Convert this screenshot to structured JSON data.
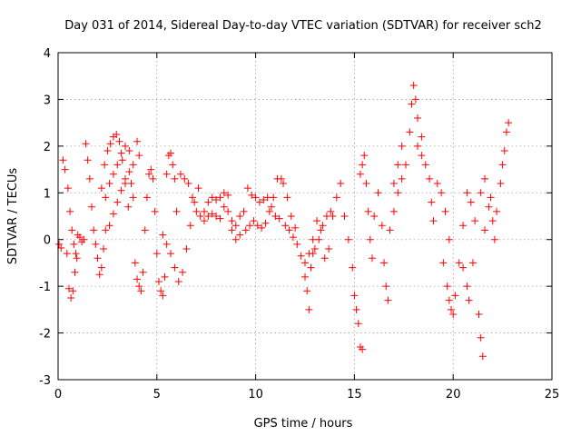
{
  "chart_data": {
    "type": "scatter",
    "title": "Day 031 of 2014, Sidereal Day-to-day VTEC variation (SDTVAR) for receiver sch2",
    "xlabel": "GPS time / hours",
    "ylabel": "SDTVAR / TECUs",
    "xlim": [
      0,
      25
    ],
    "ylim": [
      -3,
      4
    ],
    "xticks": [
      "0",
      "5",
      "10",
      "15",
      "20",
      "25"
    ],
    "yticks": [
      "-3",
      "-2",
      "-1",
      "0",
      "1",
      "2",
      "3",
      "4"
    ],
    "grid": true,
    "marker": "+",
    "color": "#ff0000",
    "series": [
      {
        "name": "sch2",
        "points": [
          [
            0.05,
            -0.1
          ],
          [
            0.15,
            -0.18
          ],
          [
            0.25,
            1.7
          ],
          [
            0.35,
            1.5
          ],
          [
            0.45,
            -0.3
          ],
          [
            0.55,
            -1.05
          ],
          [
            0.65,
            -1.25
          ],
          [
            0.75,
            -1.1
          ],
          [
            0.85,
            -0.7
          ],
          [
            0.95,
            -0.4
          ],
          [
            0.5,
            1.1
          ],
          [
            0.6,
            0.6
          ],
          [
            0.7,
            0.2
          ],
          [
            0.8,
            -0.1
          ],
          [
            0.9,
            -0.3
          ],
          [
            1.0,
            0.1
          ],
          [
            1.1,
            0.05
          ],
          [
            1.2,
            -0.05
          ],
          [
            1.3,
            0.0
          ],
          [
            1.4,
            2.05
          ],
          [
            1.5,
            1.7
          ],
          [
            1.6,
            1.3
          ],
          [
            1.7,
            0.7
          ],
          [
            1.8,
            0.2
          ],
          [
            1.9,
            -0.1
          ],
          [
            2.0,
            -0.4
          ],
          [
            2.1,
            -0.75
          ],
          [
            2.2,
            -0.6
          ],
          [
            2.3,
            -0.2
          ],
          [
            2.4,
            0.2
          ],
          [
            2.2,
            1.1
          ],
          [
            2.35,
            1.6
          ],
          [
            2.5,
            1.9
          ],
          [
            2.65,
            2.05
          ],
          [
            2.8,
            2.2
          ],
          [
            2.95,
            2.25
          ],
          [
            3.1,
            2.1
          ],
          [
            3.25,
            1.7
          ],
          [
            3.4,
            1.2
          ],
          [
            3.55,
            0.7
          ],
          [
            2.4,
            0.9
          ],
          [
            2.6,
            1.2
          ],
          [
            2.8,
            1.4
          ],
          [
            3.0,
            1.6
          ],
          [
            3.2,
            1.85
          ],
          [
            3.4,
            2.0
          ],
          [
            3.6,
            1.9
          ],
          [
            3.8,
            1.6
          ],
          [
            4.0,
            2.1
          ],
          [
            4.1,
            1.8
          ],
          [
            2.6,
            0.3
          ],
          [
            2.8,
            0.55
          ],
          [
            3.0,
            0.8
          ],
          [
            3.2,
            1.05
          ],
          [
            3.4,
            1.3
          ],
          [
            3.6,
            1.45
          ],
          [
            3.7,
            1.2
          ],
          [
            3.8,
            0.9
          ],
          [
            3.9,
            -0.5
          ],
          [
            4.0,
            -0.85
          ],
          [
            4.1,
            -1.0
          ],
          [
            4.2,
            -1.1
          ],
          [
            4.3,
            -0.7
          ],
          [
            4.4,
            0.2
          ],
          [
            4.5,
            0.9
          ],
          [
            4.6,
            1.4
          ],
          [
            4.7,
            1.5
          ],
          [
            4.8,
            1.3
          ],
          [
            4.9,
            0.6
          ],
          [
            5.0,
            -0.3
          ],
          [
            5.1,
            -0.9
          ],
          [
            5.2,
            -1.1
          ],
          [
            5.3,
            -1.2
          ],
          [
            5.4,
            -0.8
          ],
          [
            5.5,
            1.4
          ],
          [
            5.6,
            1.8
          ],
          [
            5.7,
            1.85
          ],
          [
            5.8,
            1.6
          ],
          [
            5.9,
            1.3
          ],
          [
            6.0,
            0.6
          ],
          [
            5.3,
            0.1
          ],
          [
            5.5,
            -0.1
          ],
          [
            5.7,
            -0.3
          ],
          [
            5.9,
            -0.6
          ],
          [
            6.1,
            -0.9
          ],
          [
            6.3,
            -0.7
          ],
          [
            6.5,
            -0.2
          ],
          [
            6.7,
            0.3
          ],
          [
            6.9,
            0.8
          ],
          [
            7.1,
            1.1
          ],
          [
            6.2,
            1.4
          ],
          [
            6.4,
            1.3
          ],
          [
            6.6,
            1.2
          ],
          [
            6.8,
            0.9
          ],
          [
            7.0,
            0.6
          ],
          [
            7.2,
            0.5
          ],
          [
            7.4,
            0.6
          ],
          [
            7.6,
            0.8
          ],
          [
            7.8,
            0.9
          ],
          [
            8.0,
            0.85
          ],
          [
            7.4,
            0.4
          ],
          [
            7.6,
            0.5
          ],
          [
            7.8,
            0.55
          ],
          [
            8.0,
            0.5
          ],
          [
            8.2,
            0.45
          ],
          [
            8.4,
            0.7
          ],
          [
            8.6,
            0.6
          ],
          [
            8.8,
            0.4
          ],
          [
            9.0,
            0.3
          ],
          [
            9.2,
            0.1
          ],
          [
            8.2,
            0.9
          ],
          [
            8.4,
            1.0
          ],
          [
            8.6,
            0.95
          ],
          [
            8.8,
            0.2
          ],
          [
            9.0,
            0.0
          ],
          [
            9.2,
            0.5
          ],
          [
            9.4,
            0.6
          ],
          [
            9.6,
            1.1
          ],
          [
            9.8,
            0.95
          ],
          [
            10.0,
            0.9
          ],
          [
            9.5,
            0.2
          ],
          [
            9.7,
            0.3
          ],
          [
            9.9,
            0.4
          ],
          [
            10.1,
            0.3
          ],
          [
            10.3,
            0.25
          ],
          [
            10.5,
            0.35
          ],
          [
            10.7,
            0.6
          ],
          [
            10.9,
            0.9
          ],
          [
            11.1,
            1.3
          ],
          [
            11.3,
            1.3
          ],
          [
            10.2,
            0.8
          ],
          [
            10.4,
            0.85
          ],
          [
            10.6,
            0.9
          ],
          [
            10.8,
            0.7
          ],
          [
            11.0,
            0.5
          ],
          [
            11.2,
            0.45
          ],
          [
            11.4,
            1.2
          ],
          [
            11.6,
            0.9
          ],
          [
            11.8,
            0.5
          ],
          [
            12.0,
            0.25
          ],
          [
            11.5,
            0.3
          ],
          [
            11.7,
            0.2
          ],
          [
            11.9,
            0.05
          ],
          [
            12.1,
            -0.1
          ],
          [
            12.3,
            -0.35
          ],
          [
            12.5,
            -0.5
          ],
          [
            12.7,
            -0.3
          ],
          [
            12.9,
            0.0
          ],
          [
            13.1,
            0.4
          ],
          [
            13.3,
            0.2
          ],
          [
            12.5,
            -0.8
          ],
          [
            12.6,
            -1.1
          ],
          [
            12.7,
            -1.5
          ],
          [
            12.8,
            -0.6
          ],
          [
            12.9,
            -0.3
          ],
          [
            13.0,
            -0.2
          ],
          [
            13.2,
            0.0
          ],
          [
            13.4,
            0.3
          ],
          [
            13.6,
            0.5
          ],
          [
            13.8,
            0.6
          ],
          [
            13.5,
            -0.4
          ],
          [
            13.7,
            -0.2
          ],
          [
            13.9,
            0.5
          ],
          [
            14.1,
            0.9
          ],
          [
            14.3,
            1.2
          ],
          [
            14.5,
            0.5
          ],
          [
            14.7,
            0.0
          ],
          [
            14.9,
            -0.6
          ],
          [
            15.0,
            -1.2
          ],
          [
            15.1,
            -1.5
          ],
          [
            15.2,
            -1.8
          ],
          [
            15.3,
            -2.3
          ],
          [
            15.4,
            -2.35
          ],
          [
            15.3,
            1.4
          ],
          [
            15.4,
            1.6
          ],
          [
            15.5,
            1.8
          ],
          [
            15.6,
            1.2
          ],
          [
            15.7,
            0.6
          ],
          [
            15.8,
            0.0
          ],
          [
            15.9,
            -0.4
          ],
          [
            16.0,
            0.5
          ],
          [
            16.2,
            1.0
          ],
          [
            16.4,
            0.3
          ],
          [
            16.5,
            -0.5
          ],
          [
            16.6,
            -1.0
          ],
          [
            16.7,
            -1.3
          ],
          [
            16.8,
            0.2
          ],
          [
            17.0,
            1.2
          ],
          [
            17.2,
            1.6
          ],
          [
            17.4,
            2.0
          ],
          [
            17.0,
            0.6
          ],
          [
            17.2,
            1.0
          ],
          [
            17.4,
            1.3
          ],
          [
            17.6,
            1.6
          ],
          [
            17.8,
            2.3
          ],
          [
            17.9,
            2.9
          ],
          [
            18.0,
            3.3
          ],
          [
            18.1,
            3.0
          ],
          [
            18.2,
            2.6
          ],
          [
            18.4,
            2.2
          ],
          [
            18.2,
            2.0
          ],
          [
            18.4,
            1.8
          ],
          [
            18.6,
            1.6
          ],
          [
            18.8,
            1.3
          ],
          [
            18.9,
            0.8
          ],
          [
            19.0,
            0.4
          ],
          [
            19.2,
            1.2
          ],
          [
            19.4,
            1.0
          ],
          [
            19.6,
            0.6
          ],
          [
            19.8,
            0.0
          ],
          [
            19.5,
            -0.5
          ],
          [
            19.7,
            -1.0
          ],
          [
            19.8,
            -1.3
          ],
          [
            19.9,
            -1.5
          ],
          [
            20.0,
            -1.6
          ],
          [
            20.1,
            -1.2
          ],
          [
            20.3,
            -0.5
          ],
          [
            20.5,
            0.3
          ],
          [
            20.7,
            1.0
          ],
          [
            20.9,
            0.8
          ],
          [
            20.5,
            -0.6
          ],
          [
            20.7,
            -1.0
          ],
          [
            20.8,
            -1.3
          ],
          [
            21.0,
            -0.5
          ],
          [
            21.1,
            0.4
          ],
          [
            21.3,
            -1.6
          ],
          [
            21.4,
            -2.1
          ],
          [
            21.5,
            -2.5
          ],
          [
            21.4,
            1.0
          ],
          [
            21.6,
            1.3
          ],
          [
            21.6,
            0.2
          ],
          [
            21.8,
            0.7
          ],
          [
            21.9,
            0.9
          ],
          [
            22.0,
            0.4
          ],
          [
            22.1,
            0.0
          ],
          [
            22.2,
            0.6
          ],
          [
            22.4,
            1.2
          ],
          [
            22.5,
            1.6
          ],
          [
            22.6,
            1.9
          ],
          [
            22.7,
            2.3
          ],
          [
            22.8,
            2.5
          ]
        ]
      }
    ]
  }
}
